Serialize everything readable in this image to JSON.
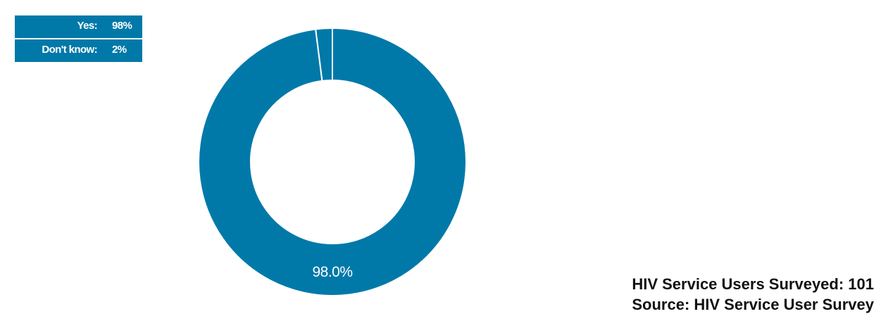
{
  "colors": {
    "accent": "#0079a9",
    "slice_border": "#ffffff"
  },
  "legend": [
    {
      "label": "Yes:",
      "value": "98%"
    },
    {
      "label": "Don't know:",
      "value": "2%"
    }
  ],
  "chart_data": {
    "type": "pie",
    "categories": [
      "Yes",
      "Don't know"
    ],
    "values": [
      98.0,
      2.0
    ],
    "data_labels": [
      "98.0%"
    ],
    "title": "",
    "legend_position": "top-left"
  },
  "footer": {
    "line1": "HIV Service Users Surveyed: 101",
    "line2": "Source: HIV Service User Survey"
  }
}
